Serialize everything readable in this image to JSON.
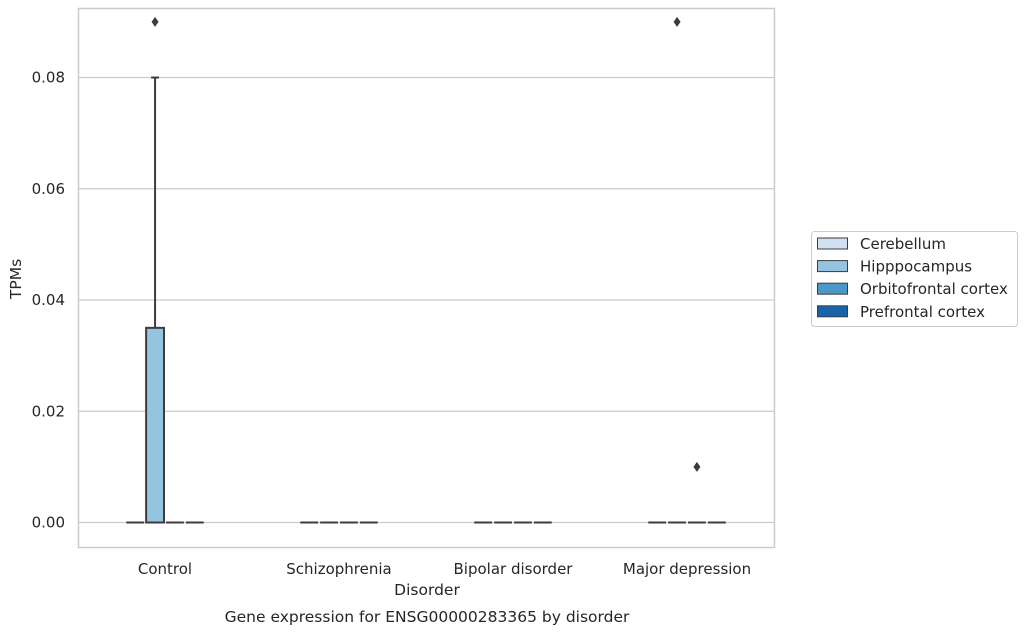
{
  "chart_data": {
    "type": "box",
    "caption": "Gene expression for ENSG00000283365 by disorder",
    "xlabel": "Disorder",
    "ylabel": "TPMs",
    "ylim": [
      -0.0044,
      0.0925
    ],
    "yticks": [
      "0.00",
      "0.02",
      "0.04",
      "0.06",
      "0.08"
    ],
    "grid": "horizontal",
    "legend_position": "right",
    "categories": [
      "Control",
      "Schizophrenia",
      "Bipolar disorder",
      "Major depression"
    ],
    "series": [
      {
        "name": "Cerebellum",
        "color": "#d0e1f2",
        "boxes": [
          {
            "q1": 0,
            "median": 0,
            "q3": 0,
            "whislo": 0,
            "whishi": 0,
            "fliers": []
          },
          {
            "q1": 0,
            "median": 0,
            "q3": 0,
            "whislo": 0,
            "whishi": 0,
            "fliers": []
          },
          {
            "q1": 0,
            "median": 0,
            "q3": 0,
            "whislo": 0,
            "whishi": 0,
            "fliers": []
          },
          {
            "q1": 0,
            "median": 0,
            "q3": 0,
            "whislo": 0,
            "whishi": 0,
            "fliers": []
          }
        ]
      },
      {
        "name": "Hipppocampus",
        "color": "#94c4df",
        "boxes": [
          {
            "q1": 0,
            "median": 0,
            "q3": 0.035,
            "whislo": 0,
            "whishi": 0.08,
            "fliers": [
              0.09
            ]
          },
          {
            "q1": 0,
            "median": 0,
            "q3": 0,
            "whislo": 0,
            "whishi": 0,
            "fliers": []
          },
          {
            "q1": 0,
            "median": 0,
            "q3": 0,
            "whislo": 0,
            "whishi": 0,
            "fliers": []
          },
          {
            "q1": 0,
            "median": 0,
            "q3": 0,
            "whislo": 0,
            "whishi": 0,
            "fliers": [
              0.09
            ]
          }
        ]
      },
      {
        "name": "Orbitofrontal cortex",
        "color": "#4a98c9",
        "boxes": [
          {
            "q1": 0,
            "median": 0,
            "q3": 0,
            "whislo": 0,
            "whishi": 0,
            "fliers": []
          },
          {
            "q1": 0,
            "median": 0,
            "q3": 0,
            "whislo": 0,
            "whishi": 0,
            "fliers": []
          },
          {
            "q1": 0,
            "median": 0,
            "q3": 0,
            "whislo": 0,
            "whishi": 0,
            "fliers": []
          },
          {
            "q1": 0,
            "median": 0,
            "q3": 0,
            "whislo": 0,
            "whishi": 0,
            "fliers": [
              0.01
            ]
          }
        ]
      },
      {
        "name": "Prefrontal cortex",
        "color": "#1764ab",
        "boxes": [
          {
            "q1": 0,
            "median": 0,
            "q3": 0,
            "whislo": 0,
            "whishi": 0,
            "fliers": []
          },
          {
            "q1": 0,
            "median": 0,
            "q3": 0,
            "whislo": 0,
            "whishi": 0,
            "fliers": []
          },
          {
            "q1": 0,
            "median": 0,
            "q3": 0,
            "whislo": 0,
            "whishi": 0,
            "fliers": []
          },
          {
            "q1": 0,
            "median": 0,
            "q3": 0,
            "whislo": 0,
            "whishi": 0,
            "fliers": []
          }
        ]
      }
    ]
  }
}
